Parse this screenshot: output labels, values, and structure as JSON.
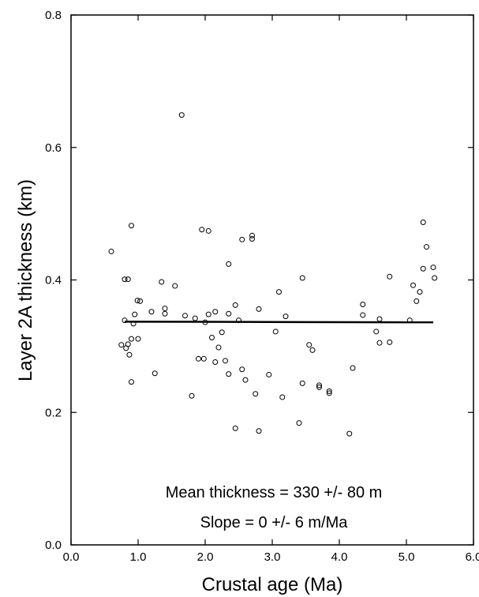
{
  "chart_data": {
    "type": "scatter",
    "xlabel": "Crustal age (Ma)",
    "ylabel": "Layer 2A thickness (km)",
    "xlim": [
      0.0,
      6.0
    ],
    "ylim": [
      0.0,
      0.8
    ],
    "x_ticks": [
      "0.0",
      "1.0",
      "2.0",
      "3.0",
      "4.0",
      "5.0",
      "6.0"
    ],
    "y_ticks": [
      "0.0",
      "0.2",
      "0.4",
      "0.6",
      "0.8"
    ],
    "annotations": [
      "Mean thickness = 330 +/- 80 m",
      "Slope = 0 +/- 6 m/Ma"
    ],
    "regression_line": {
      "x": [
        0.8,
        5.4
      ],
      "y": [
        0.337,
        0.336
      ]
    },
    "points": [
      [
        0.6,
        0.443
      ],
      [
        0.75,
        0.302
      ],
      [
        0.8,
        0.339
      ],
      [
        0.8,
        0.401
      ],
      [
        0.82,
        0.297
      ],
      [
        0.85,
        0.401
      ],
      [
        0.85,
        0.303
      ],
      [
        0.87,
        0.287
      ],
      [
        0.9,
        0.482
      ],
      [
        0.9,
        0.311
      ],
      [
        0.9,
        0.246
      ],
      [
        0.93,
        0.334
      ],
      [
        0.95,
        0.348
      ],
      [
        0.99,
        0.369
      ],
      [
        1.0,
        0.311
      ],
      [
        1.03,
        0.368
      ],
      [
        1.2,
        0.352
      ],
      [
        1.25,
        0.259
      ],
      [
        1.35,
        0.397
      ],
      [
        1.4,
        0.357
      ],
      [
        1.4,
        0.349
      ],
      [
        1.55,
        0.391
      ],
      [
        1.65,
        0.649
      ],
      [
        1.7,
        0.346
      ],
      [
        1.8,
        0.225
      ],
      [
        1.85,
        0.342
      ],
      [
        1.9,
        0.281
      ],
      [
        1.95,
        0.476
      ],
      [
        1.98,
        0.281
      ],
      [
        2.0,
        0.336
      ],
      [
        2.05,
        0.474
      ],
      [
        2.05,
        0.348
      ],
      [
        2.1,
        0.313
      ],
      [
        2.15,
        0.352
      ],
      [
        2.15,
        0.276
      ],
      [
        2.2,
        0.298
      ],
      [
        2.25,
        0.321
      ],
      [
        2.3,
        0.278
      ],
      [
        2.35,
        0.258
      ],
      [
        2.35,
        0.424
      ],
      [
        2.35,
        0.349
      ],
      [
        2.45,
        0.362
      ],
      [
        2.45,
        0.176
      ],
      [
        2.5,
        0.339
      ],
      [
        2.55,
        0.461
      ],
      [
        2.55,
        0.265
      ],
      [
        2.6,
        0.249
      ],
      [
        2.7,
        0.467
      ],
      [
        2.7,
        0.462
      ],
      [
        2.75,
        0.228
      ],
      [
        2.8,
        0.356
      ],
      [
        2.8,
        0.172
      ],
      [
        2.95,
        0.257
      ],
      [
        3.05,
        0.322
      ],
      [
        3.1,
        0.382
      ],
      [
        3.15,
        0.223
      ],
      [
        3.2,
        0.345
      ],
      [
        3.4,
        0.184
      ],
      [
        3.45,
        0.403
      ],
      [
        3.45,
        0.244
      ],
      [
        3.55,
        0.302
      ],
      [
        3.6,
        0.294
      ],
      [
        3.7,
        0.241
      ],
      [
        3.7,
        0.238
      ],
      [
        3.85,
        0.232
      ],
      [
        3.85,
        0.229
      ],
      [
        4.15,
        0.168
      ],
      [
        4.2,
        0.267
      ],
      [
        4.35,
        0.363
      ],
      [
        4.35,
        0.347
      ],
      [
        4.55,
        0.322
      ],
      [
        4.6,
        0.341
      ],
      [
        4.6,
        0.305
      ],
      [
        4.75,
        0.405
      ],
      [
        4.75,
        0.306
      ],
      [
        5.05,
        0.339
      ],
      [
        5.1,
        0.392
      ],
      [
        5.15,
        0.368
      ],
      [
        5.2,
        0.382
      ],
      [
        5.25,
        0.487
      ],
      [
        5.25,
        0.417
      ],
      [
        5.3,
        0.45
      ],
      [
        5.4,
        0.419
      ],
      [
        5.42,
        0.403
      ]
    ]
  }
}
